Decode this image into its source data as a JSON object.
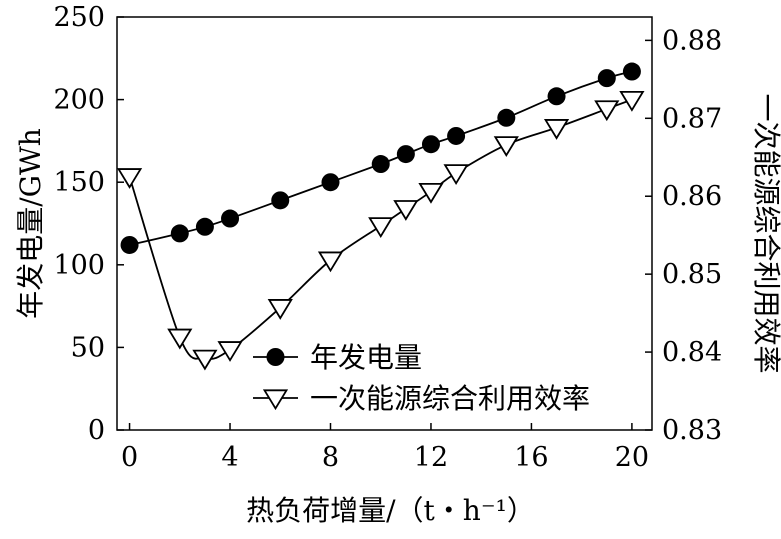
{
  "chart_data": {
    "type": "line",
    "xlabel": "热负荷增量/（t・h⁻¹）",
    "ylabel_left": "年发电量/GWh",
    "ylabel_right": "一次能源综合利用效率",
    "xlim": [
      -0.5,
      20.8
    ],
    "ylim_left": [
      0,
      250
    ],
    "ylim_right": [
      0.83,
      0.883
    ],
    "x_ticks": [
      0,
      4,
      8,
      12,
      16,
      20
    ],
    "y_ticks_left": [
      0,
      50,
      100,
      150,
      200,
      250
    ],
    "y_ticks_right": [
      0.83,
      0.84,
      0.85,
      0.86,
      0.87,
      0.88
    ],
    "x_tick_labels": [
      "0",
      "4",
      "8",
      "12",
      "16",
      "20"
    ],
    "y_tick_labels_left": [
      "0",
      "50",
      "100",
      "150",
      "200",
      "250"
    ],
    "y_tick_labels_right": [
      "0.83",
      "0.84",
      "0.85",
      "0.86",
      "0.87",
      "0.88"
    ],
    "legend_position": "bottom-right",
    "grid": false,
    "series": [
      {
        "name": "年发电量",
        "axis": "left",
        "marker": "filled-circle",
        "color": "#000000",
        "x": [
          0,
          2,
          3,
          4,
          6,
          8,
          10,
          11,
          12,
          13,
          15,
          17,
          19,
          20
        ],
        "y": [
          112,
          119,
          123,
          128,
          139,
          150,
          161,
          167,
          173,
          178,
          189,
          202,
          213,
          217
        ]
      },
      {
        "name": "一次能源综合利用效率",
        "axis": "right",
        "marker": "open-triangle-down",
        "color": "#000000",
        "x": [
          0,
          2,
          3,
          4,
          6,
          8,
          10,
          11,
          12,
          13,
          15,
          17,
          19,
          20
        ],
        "y": [
          0.8625,
          0.8419,
          0.8392,
          0.8403,
          0.8457,
          0.8518,
          0.8562,
          0.8584,
          0.8606,
          0.863,
          0.8666,
          0.8688,
          0.8712,
          0.8724
        ]
      }
    ]
  }
}
